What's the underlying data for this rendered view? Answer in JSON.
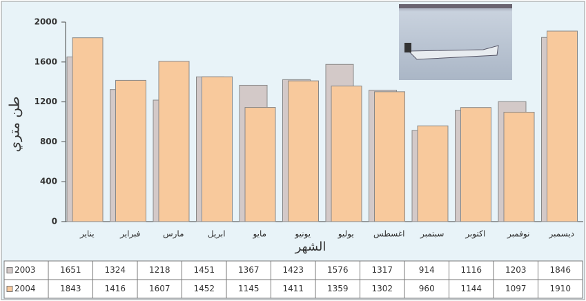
{
  "chart_data": {
    "type": "bar",
    "y_label": "طن متري",
    "x_label": "الشهر",
    "categories": [
      "يناير",
      "فبراير",
      "مارس",
      "ابريل",
      "مايو",
      "يونيو",
      "يوليو",
      "اغسطس",
      "سبتمبر",
      "اكتوبر",
      "نوفمبر",
      "ديسمبر"
    ],
    "series": [
      {
        "name": "2003",
        "color": "#d3c9c8",
        "values": [
          1651,
          1324,
          1218,
          1451,
          1367,
          1423,
          1576,
          1317,
          914,
          1116,
          1203,
          1846
        ]
      },
      {
        "name": "2004",
        "color": "#f8c99c",
        "values": [
          1843,
          1416,
          1607,
          1452,
          1145,
          1411,
          1359,
          1302,
          960,
          1144,
          1097,
          1910
        ]
      }
    ],
    "ylim": [
      0,
      2000
    ],
    "yticks": [
      0,
      400,
      800,
      1200,
      1600,
      2000
    ],
    "grid": false
  }
}
